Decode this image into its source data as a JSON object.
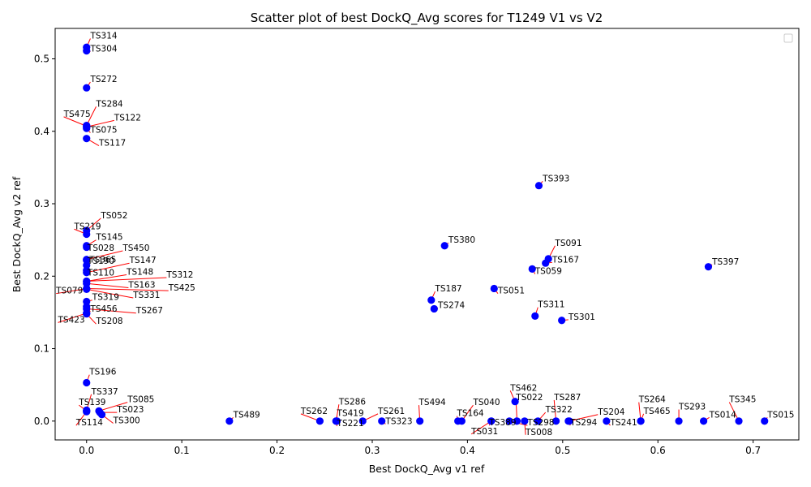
{
  "chart_data": {
    "type": "scatter",
    "title": "Scatter plot of best DockQ_Avg scores for T1249 V1 vs V2",
    "xlabel": "Best DockQ_Avg v1 ref",
    "ylabel": "Best DockQ_Avg v2 ref",
    "xlim": [
      -0.033,
      0.748
    ],
    "ylim": [
      -0.026,
      0.542
    ],
    "xticks": [
      0.0,
      0.1,
      0.2,
      0.3,
      0.4,
      0.5,
      0.6,
      0.7
    ],
    "xtick_labels": [
      "0.0",
      "0.1",
      "0.2",
      "0.3",
      "0.4",
      "0.5",
      "0.6",
      "0.7"
    ],
    "yticks": [
      0.0,
      0.1,
      0.2,
      0.3,
      0.4,
      0.5
    ],
    "ytick_labels": [
      "0.0",
      "0.1",
      "0.2",
      "0.3",
      "0.4",
      "0.5"
    ],
    "grid": false,
    "legend": "top-right (empty)",
    "marker_color": "#0000ff",
    "annotation_line_color": "#ff0000",
    "points": [
      {
        "label": "TS314",
        "x": 0.0,
        "y": 0.516,
        "lx": 0.004,
        "ly": 0.528
      },
      {
        "label": "TS304",
        "x": 0.0,
        "y": 0.511,
        "lx": 0.004,
        "ly": 0.51
      },
      {
        "label": "TS272",
        "x": 0.0,
        "y": 0.46,
        "lx": 0.004,
        "ly": 0.468
      },
      {
        "label": "TS284",
        "x": 0.0,
        "y": 0.408,
        "lx": 0.01,
        "ly": 0.434
      },
      {
        "label": "TS475",
        "x": 0.0,
        "y": 0.407,
        "lx": -0.024,
        "ly": 0.42
      },
      {
        "label": "TS122",
        "x": 0.0,
        "y": 0.406,
        "lx": 0.029,
        "ly": 0.415
      },
      {
        "label": "TS075",
        "x": 0.0,
        "y": 0.404,
        "lx": 0.004,
        "ly": 0.398
      },
      {
        "label": "TS117",
        "x": 0.0,
        "y": 0.39,
        "lx": 0.013,
        "ly": 0.38
      },
      {
        "label": "TS052",
        "x": 0.0,
        "y": 0.263,
        "lx": 0.015,
        "ly": 0.28
      },
      {
        "label": "TS219",
        "x": 0.0,
        "y": 0.258,
        "lx": -0.013,
        "ly": 0.265
      },
      {
        "label": "TS145",
        "x": 0.0,
        "y": 0.242,
        "lx": 0.01,
        "ly": 0.25
      },
      {
        "label": "TS028",
        "x": 0.0,
        "y": 0.24,
        "lx": 0.001,
        "ly": 0.235
      },
      {
        "label": "TS450",
        "x": 0.0,
        "y": 0.223,
        "lx": 0.038,
        "ly": 0.235
      },
      {
        "label": "TS365",
        "x": 0.0,
        "y": 0.222,
        "lx": 0.003,
        "ly": 0.219
      },
      {
        "label": "TS190",
        "x": 0.0,
        "y": 0.215,
        "lx": 0.001,
        "ly": 0.217
      },
      {
        "label": "TS147",
        "x": 0.0,
        "y": 0.205,
        "lx": 0.045,
        "ly": 0.218
      },
      {
        "label": "TS110",
        "x": 0.0,
        "y": 0.208,
        "lx": 0.001,
        "ly": 0.201
      },
      {
        "label": "TS148",
        "x": 0.0,
        "y": 0.193,
        "lx": 0.042,
        "ly": 0.202
      },
      {
        "label": "TS312",
        "x": 0.0,
        "y": 0.193,
        "lx": 0.084,
        "ly": 0.198
      },
      {
        "label": "TS163",
        "x": 0.0,
        "y": 0.19,
        "lx": 0.044,
        "ly": 0.184
      },
      {
        "label": "TS079",
        "x": 0.0,
        "y": 0.183,
        "lx": -0.032,
        "ly": 0.176
      },
      {
        "label": "TS425",
        "x": 0.0,
        "y": 0.183,
        "lx": 0.086,
        "ly": 0.18
      },
      {
        "label": "TS331",
        "x": 0.0,
        "y": 0.182,
        "lx": 0.049,
        "ly": 0.17
      },
      {
        "label": "TS319",
        "x": 0.0,
        "y": 0.165,
        "lx": 0.006,
        "ly": 0.167
      },
      {
        "label": "TS456",
        "x": 0.0,
        "y": 0.158,
        "lx": 0.004,
        "ly": 0.151
      },
      {
        "label": "TS267",
        "x": 0.0,
        "y": 0.155,
        "lx": 0.052,
        "ly": 0.149
      },
      {
        "label": "TS423",
        "x": 0.0,
        "y": 0.149,
        "lx": -0.03,
        "ly": 0.136
      },
      {
        "label": "TS208",
        "x": 0.0,
        "y": 0.148,
        "lx": 0.01,
        "ly": 0.134
      },
      {
        "label": "TS196",
        "x": 0.0,
        "y": 0.053,
        "lx": 0.003,
        "ly": 0.064
      },
      {
        "label": "TS337",
        "x": 0.0,
        "y": 0.015,
        "lx": 0.005,
        "ly": 0.037
      },
      {
        "label": "TS085",
        "x": 0.013,
        "y": 0.014,
        "lx": 0.043,
        "ly": 0.026
      },
      {
        "label": "TS139",
        "x": 0.0,
        "y": 0.014,
        "lx": -0.008,
        "ly": 0.022
      },
      {
        "label": "TS023",
        "x": 0.014,
        "y": 0.012,
        "lx": 0.032,
        "ly": 0.012
      },
      {
        "label": "TS114",
        "x": 0.0,
        "y": 0.013,
        "lx": -0.011,
        "ly": -0.006
      },
      {
        "label": "TS300",
        "x": 0.016,
        "y": 0.009,
        "lx": 0.028,
        "ly": -0.003
      },
      {
        "label": "TS489",
        "x": 0.15,
        "y": 0.0,
        "lx": 0.154,
        "ly": 0.005
      },
      {
        "label": "TS262",
        "x": 0.245,
        "y": 0.0,
        "lx": 0.225,
        "ly": 0.01
      },
      {
        "label": "TS286",
        "x": 0.262,
        "y": 0.0,
        "lx": 0.265,
        "ly": 0.023
      },
      {
        "label": "TS419",
        "x": 0.263,
        "y": 0.0,
        "lx": 0.263,
        "ly": 0.007
      },
      {
        "label": "TS221",
        "x": 0.262,
        "y": 0.0,
        "lx": 0.263,
        "ly": -0.007
      },
      {
        "label": "TS261",
        "x": 0.29,
        "y": 0.0,
        "lx": 0.306,
        "ly": 0.01
      },
      {
        "label": "TS323",
        "x": 0.31,
        "y": 0.0,
        "lx": 0.314,
        "ly": -0.004
      },
      {
        "label": "TS494",
        "x": 0.35,
        "y": 0.0,
        "lx": 0.349,
        "ly": 0.022
      },
      {
        "label": "TS164",
        "x": 0.39,
        "y": 0.0,
        "lx": 0.389,
        "ly": 0.007
      },
      {
        "label": "TS040",
        "x": 0.394,
        "y": 0.0,
        "lx": 0.406,
        "ly": 0.022
      },
      {
        "label": "TS389",
        "x": 0.425,
        "y": 0.0,
        "lx": 0.423,
        "ly": -0.006
      },
      {
        "label": "TS031",
        "x": 0.425,
        "y": 0.0,
        "lx": 0.404,
        "ly": -0.018
      },
      {
        "label": "TS462",
        "x": 0.45,
        "y": 0.027,
        "lx": 0.445,
        "ly": 0.042
      },
      {
        "label": "TS022",
        "x": 0.452,
        "y": 0.0,
        "lx": 0.451,
        "ly": 0.029
      },
      {
        "label": "TS298",
        "x": 0.444,
        "y": 0.0,
        "lx": 0.463,
        "ly": -0.006
      },
      {
        "label": "TS008",
        "x": 0.46,
        "y": 0.0,
        "lx": 0.461,
        "ly": -0.019
      },
      {
        "label": "TS287",
        "x": 0.493,
        "y": 0.0,
        "lx": 0.491,
        "ly": 0.029
      },
      {
        "label": "TS322",
        "x": 0.474,
        "y": 0.0,
        "lx": 0.482,
        "ly": 0.012
      },
      {
        "label": "TS294",
        "x": 0.506,
        "y": 0.0,
        "lx": 0.508,
        "ly": -0.006
      },
      {
        "label": "TS204",
        "x": 0.507,
        "y": 0.0,
        "lx": 0.537,
        "ly": 0.009
      },
      {
        "label": "TS241",
        "x": 0.546,
        "y": 0.0,
        "lx": 0.55,
        "ly": -0.006
      },
      {
        "label": "TS264",
        "x": 0.582,
        "y": 0.0,
        "lx": 0.58,
        "ly": 0.026
      },
      {
        "label": "TS465",
        "x": 0.582,
        "y": 0.0,
        "lx": 0.585,
        "ly": 0.01
      },
      {
        "label": "TS293",
        "x": 0.622,
        "y": 0.0,
        "lx": 0.622,
        "ly": 0.016
      },
      {
        "label": "TS014",
        "x": 0.648,
        "y": 0.0,
        "lx": 0.654,
        "ly": 0.005
      },
      {
        "label": "TS345",
        "x": 0.685,
        "y": 0.0,
        "lx": 0.675,
        "ly": 0.026
      },
      {
        "label": "TS015",
        "x": 0.712,
        "y": 0.0,
        "lx": 0.715,
        "ly": 0.005
      },
      {
        "label": "TS393",
        "x": 0.475,
        "y": 0.325,
        "lx": 0.479,
        "ly": 0.331
      },
      {
        "label": "TS380",
        "x": 0.376,
        "y": 0.242,
        "lx": 0.38,
        "ly": 0.246
      },
      {
        "label": "TS091",
        "x": 0.485,
        "y": 0.224,
        "lx": 0.492,
        "ly": 0.242
      },
      {
        "label": "TS167",
        "x": 0.482,
        "y": 0.218,
        "lx": 0.489,
        "ly": 0.219
      },
      {
        "label": "TS059",
        "x": 0.468,
        "y": 0.21,
        "lx": 0.471,
        "ly": 0.203
      },
      {
        "label": "TS397",
        "x": 0.653,
        "y": 0.213,
        "lx": 0.657,
        "ly": 0.216
      },
      {
        "label": "TS187",
        "x": 0.362,
        "y": 0.167,
        "lx": 0.366,
        "ly": 0.179
      },
      {
        "label": "TS051",
        "x": 0.428,
        "y": 0.183,
        "lx": 0.432,
        "ly": 0.176
      },
      {
        "label": "TS274",
        "x": 0.365,
        "y": 0.155,
        "lx": 0.369,
        "ly": 0.156
      },
      {
        "label": "TS311",
        "x": 0.471,
        "y": 0.145,
        "lx": 0.474,
        "ly": 0.157
      },
      {
        "label": "TS301",
        "x": 0.499,
        "y": 0.139,
        "lx": 0.506,
        "ly": 0.14
      }
    ]
  }
}
